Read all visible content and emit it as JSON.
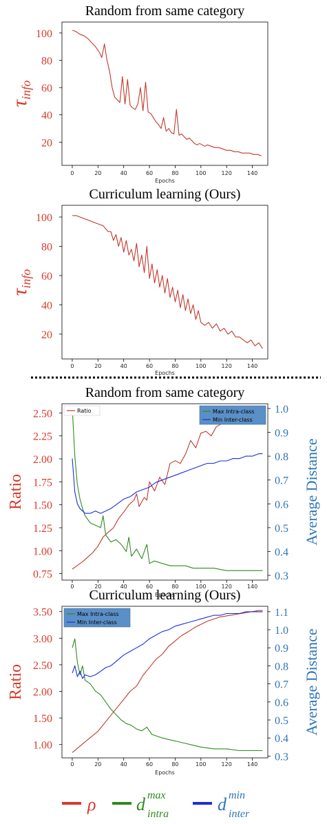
{
  "colors": {
    "ratio": "#c0392b",
    "intra": "#2e8b1f",
    "inter": "#1a2de0",
    "label_red": "#d93a2b",
    "label_blue": "#2e75b6",
    "legend_box_bg": "#5b8fc7"
  },
  "chart_data": [
    {
      "type": "line",
      "title": "Random from same category",
      "ylabel": "τinfo",
      "xlabel": "Epochs",
      "xlim": [
        -8,
        152
      ],
      "ylim": [
        3,
        108
      ],
      "xticks": [
        "0",
        "20",
        "40",
        "60",
        "80",
        "100",
        "120",
        "140"
      ],
      "yticks": [
        "20",
        "40",
        "60",
        "80",
        "100"
      ],
      "series": [
        {
          "color": "#c0392b",
          "x": [
            0,
            3,
            6,
            9,
            12,
            15,
            18,
            21,
            23,
            25,
            27,
            29,
            31,
            33,
            35,
            37,
            39,
            41,
            43,
            45,
            47,
            49,
            51,
            53,
            55,
            57,
            59,
            61,
            63,
            65,
            67,
            69,
            71,
            73,
            75,
            77,
            79,
            81,
            83,
            85,
            87,
            89,
            91,
            93,
            95,
            97,
            99,
            101,
            103,
            105,
            108,
            111,
            114,
            117,
            120,
            123,
            126,
            129,
            132,
            135,
            138,
            141,
            144,
            147
          ],
          "y": [
            102,
            101,
            99,
            98,
            96,
            93,
            90,
            86,
            82,
            92,
            80,
            72,
            60,
            53,
            51,
            49,
            68,
            48,
            66,
            47,
            45,
            44,
            48,
            60,
            43,
            64,
            42,
            41,
            38,
            35,
            33,
            30,
            38,
            28,
            30,
            27,
            26,
            44,
            25,
            26,
            24,
            22,
            23,
            21,
            19,
            18,
            19,
            18,
            17,
            18,
            17,
            16,
            16,
            15,
            14,
            14,
            13,
            13,
            12,
            12,
            12,
            11,
            11,
            10
          ]
        }
      ]
    },
    {
      "type": "line",
      "title": "Curriculum learning (Ours)",
      "ylabel": "τinfo",
      "xlabel": "Epochs",
      "xlim": [
        -8,
        152
      ],
      "ylim": [
        3,
        108
      ],
      "xticks": [
        "0",
        "20",
        "40",
        "60",
        "80",
        "100",
        "120",
        "140"
      ],
      "yticks": [
        "20",
        "40",
        "60",
        "80",
        "100"
      ],
      "series": [
        {
          "color": "#c0392b",
          "x": [
            0,
            3,
            6,
            9,
            12,
            15,
            18,
            21,
            24,
            26,
            28,
            30,
            32,
            34,
            36,
            38,
            40,
            42,
            44,
            46,
            48,
            50,
            52,
            54,
            56,
            58,
            60,
            62,
            64,
            66,
            68,
            70,
            72,
            74,
            76,
            78,
            80,
            82,
            84,
            86,
            88,
            90,
            92,
            94,
            96,
            98,
            100,
            103,
            106,
            109,
            112,
            115,
            118,
            121,
            124,
            127,
            130,
            133,
            136,
            139,
            142,
            145,
            148
          ],
          "y": [
            101,
            101,
            100,
            99,
            98,
            97,
            96,
            95,
            94,
            92,
            90,
            90,
            84,
            88,
            80,
            86,
            76,
            84,
            74,
            78,
            70,
            82,
            66,
            74,
            62,
            80,
            58,
            68,
            55,
            64,
            52,
            60,
            48,
            58,
            45,
            52,
            42,
            50,
            38,
            47,
            36,
            44,
            34,
            40,
            30,
            36,
            28,
            26,
            28,
            24,
            27,
            22,
            24,
            20,
            22,
            18,
            18,
            16,
            14,
            16,
            12,
            14,
            10
          ]
        }
      ]
    },
    {
      "type": "line",
      "title": "Random from same category",
      "ylabel": "Ratio",
      "ylabel_right": "Average Distance",
      "xlabel": "Epochs",
      "xlim": [
        -8,
        152
      ],
      "ylim": [
        0.68,
        2.6
      ],
      "ylim_right": [
        0.28,
        1.02
      ],
      "xticks": [
        "0",
        "20",
        "40",
        "60",
        "80",
        "100",
        "120",
        "140"
      ],
      "yticks": [
        "0.75",
        "1.00",
        "1.25",
        "1.50",
        "1.75",
        "2.00",
        "2.25",
        "2.50"
      ],
      "yticks_right": [
        "0.3",
        "0.4",
        "0.5",
        "0.6",
        "0.7",
        "0.8",
        "0.9",
        "1.0"
      ],
      "legend_left": [
        "Ratio"
      ],
      "legend_right": [
        "Max Intra-class",
        "Min Inter-class"
      ],
      "series": [
        {
          "name": "Ratio",
          "axis": "left",
          "color": "#c0392b",
          "x": [
            0,
            4,
            8,
            12,
            16,
            20,
            24,
            28,
            32,
            36,
            40,
            44,
            48,
            50,
            52,
            56,
            58,
            60,
            64,
            68,
            72,
            76,
            80,
            84,
            88,
            92,
            96,
            100,
            104,
            108,
            112,
            116,
            120,
            124,
            128,
            132,
            136,
            140,
            144,
            148
          ],
          "y": [
            0.8,
            0.84,
            0.88,
            0.93,
            0.98,
            1.05,
            1.15,
            1.2,
            1.25,
            1.35,
            1.42,
            1.5,
            1.55,
            1.62,
            1.48,
            1.58,
            1.55,
            1.75,
            1.65,
            1.8,
            1.72,
            1.95,
            1.98,
            1.95,
            2.05,
            2.2,
            2.12,
            2.28,
            2.3,
            2.25,
            2.35,
            2.38,
            2.4,
            2.42,
            2.44,
            2.46,
            2.48,
            2.5,
            2.52,
            2.52
          ]
        },
        {
          "name": "Max Intra-class",
          "axis": "right",
          "color": "#2e8b1f",
          "x": [
            0,
            2,
            4,
            6,
            8,
            10,
            14,
            18,
            22,
            24,
            26,
            30,
            34,
            38,
            42,
            44,
            46,
            50,
            54,
            58,
            60,
            64,
            70,
            76,
            82,
            88,
            94,
            100,
            110,
            120,
            130,
            140,
            148
          ],
          "y": [
            1.0,
            0.8,
            0.68,
            0.62,
            0.58,
            0.55,
            0.52,
            0.51,
            0.5,
            0.55,
            0.47,
            0.44,
            0.45,
            0.43,
            0.4,
            0.46,
            0.38,
            0.41,
            0.37,
            0.43,
            0.35,
            0.36,
            0.35,
            0.34,
            0.34,
            0.34,
            0.33,
            0.33,
            0.33,
            0.32,
            0.32,
            0.32,
            0.32
          ]
        },
        {
          "name": "Min Inter-class",
          "axis": "right",
          "color": "#1a2de0",
          "x": [
            0,
            2,
            4,
            6,
            8,
            10,
            14,
            18,
            22,
            26,
            30,
            35,
            40,
            45,
            50,
            55,
            60,
            65,
            70,
            75,
            80,
            85,
            90,
            95,
            100,
            105,
            110,
            115,
            120,
            125,
            130,
            135,
            140,
            145,
            148
          ],
          "y": [
            0.79,
            0.65,
            0.6,
            0.58,
            0.57,
            0.56,
            0.56,
            0.57,
            0.56,
            0.57,
            0.58,
            0.6,
            0.62,
            0.63,
            0.65,
            0.66,
            0.67,
            0.69,
            0.7,
            0.71,
            0.72,
            0.73,
            0.74,
            0.75,
            0.76,
            0.77,
            0.77,
            0.78,
            0.78,
            0.79,
            0.79,
            0.8,
            0.8,
            0.81,
            0.81
          ]
        }
      ]
    },
    {
      "type": "line",
      "title": "Curriculum learning (Ours)",
      "ylabel": "Ratio",
      "ylabel_right": "Average Distance",
      "xlabel": "Epochs",
      "xlim": [
        -8,
        152
      ],
      "ylim": [
        0.75,
        3.6
      ],
      "ylim_right": [
        0.29,
        1.13
      ],
      "xticks": [
        "0",
        "20",
        "40",
        "60",
        "80",
        "100",
        "120",
        "140"
      ],
      "yticks": [
        "1.00",
        "1.50",
        "2.00",
        "2.50",
        "3.00",
        "3.50"
      ],
      "yticks_right": [
        "0.3",
        "0.4",
        "0.5",
        "0.6",
        "0.7",
        "0.8",
        "0.9",
        "1.0",
        "1.1"
      ],
      "legend_left": [
        "Max Intra-class",
        "Min Inter-class"
      ],
      "series": [
        {
          "name": "Ratio",
          "axis": "left",
          "color": "#c0392b",
          "x": [
            0,
            5,
            10,
            15,
            20,
            25,
            30,
            35,
            40,
            45,
            50,
            55,
            60,
            65,
            70,
            75,
            80,
            85,
            90,
            95,
            100,
            105,
            110,
            115,
            120,
            125,
            130,
            135,
            140,
            145,
            148
          ],
          "y": [
            0.85,
            0.95,
            1.05,
            1.15,
            1.25,
            1.4,
            1.55,
            1.7,
            1.85,
            2.0,
            2.1,
            2.3,
            2.45,
            2.6,
            2.7,
            2.85,
            2.95,
            3.05,
            3.12,
            3.2,
            3.26,
            3.32,
            3.36,
            3.4,
            3.42,
            3.44,
            3.46,
            3.48,
            3.5,
            3.52,
            3.52
          ]
        },
        {
          "name": "Max Intra-class",
          "axis": "right",
          "color": "#2e8b1f",
          "x": [
            0,
            2,
            4,
            6,
            8,
            10,
            14,
            18,
            22,
            26,
            30,
            34,
            38,
            42,
            46,
            50,
            54,
            58,
            62,
            66,
            70,
            76,
            82,
            88,
            94,
            100,
            110,
            120,
            130,
            140,
            148
          ],
          "y": [
            0.9,
            0.95,
            0.82,
            0.75,
            0.8,
            0.72,
            0.7,
            0.66,
            0.64,
            0.6,
            0.56,
            0.53,
            0.5,
            0.48,
            0.47,
            0.45,
            0.44,
            0.46,
            0.42,
            0.41,
            0.4,
            0.39,
            0.38,
            0.37,
            0.36,
            0.35,
            0.34,
            0.34,
            0.33,
            0.33,
            0.33
          ]
        },
        {
          "name": "Min Inter-class",
          "axis": "right",
          "color": "#1a2de0",
          "x": [
            0,
            2,
            4,
            6,
            8,
            10,
            14,
            18,
            22,
            26,
            30,
            35,
            40,
            45,
            50,
            55,
            60,
            65,
            70,
            75,
            80,
            85,
            90,
            95,
            100,
            105,
            110,
            115,
            120,
            125,
            130,
            135,
            140,
            145,
            148
          ],
          "y": [
            0.76,
            0.8,
            0.74,
            0.77,
            0.73,
            0.75,
            0.74,
            0.75,
            0.77,
            0.79,
            0.8,
            0.83,
            0.86,
            0.88,
            0.9,
            0.92,
            0.95,
            0.97,
            0.99,
            1.0,
            1.02,
            1.03,
            1.04,
            1.05,
            1.06,
            1.07,
            1.08,
            1.08,
            1.09,
            1.09,
            1.09,
            1.1,
            1.1,
            1.1,
            1.1
          ]
        }
      ]
    }
  ],
  "bottom_legend": [
    {
      "symbol": "ρ",
      "color": "#d93a2b"
    },
    {
      "symbol": "d",
      "sup": "max",
      "sub": "intra",
      "color": "#2e8b1f"
    },
    {
      "symbol": "d",
      "sup": "min",
      "sub": "inter",
      "color": "#2e75b6"
    }
  ]
}
